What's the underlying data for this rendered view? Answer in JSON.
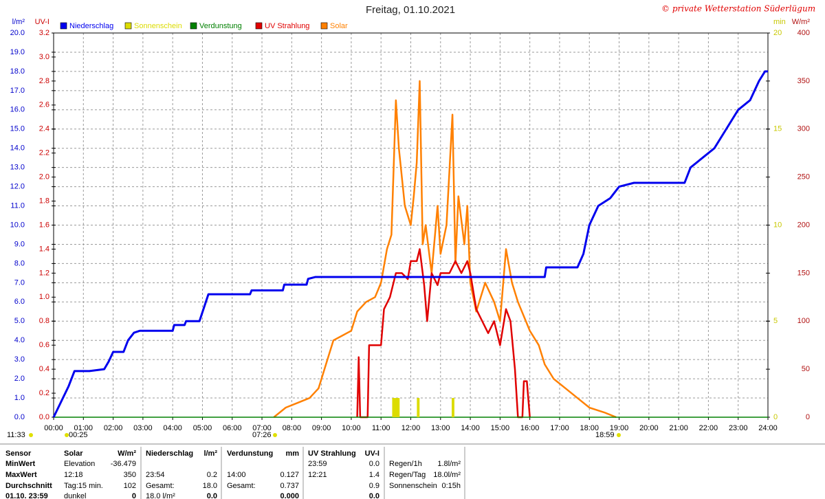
{
  "chart_data": {
    "type": "line",
    "title": "Freitag, 01.10.2021",
    "credit": "© private Wetterstation Süderlügum",
    "grid": true,
    "xlim": [
      0,
      24
    ],
    "xticks": [
      {
        "value": 0,
        "label": "00:00"
      },
      {
        "value": 1,
        "label": "01:00"
      },
      {
        "value": 2,
        "label": "02:00"
      },
      {
        "value": 3,
        "label": "03:00"
      },
      {
        "value": 4,
        "label": "04:00"
      },
      {
        "value": 5,
        "label": "05:00"
      },
      {
        "value": 6,
        "label": "06:00"
      },
      {
        "value": 7,
        "label": "07:00"
      },
      {
        "value": 8,
        "label": "08:00"
      },
      {
        "value": 9,
        "label": "09:00"
      },
      {
        "value": 10,
        "label": "10:00"
      },
      {
        "value": 11,
        "label": "11:00"
      },
      {
        "value": 12,
        "label": "12:00"
      },
      {
        "value": 13,
        "label": "13:00"
      },
      {
        "value": 14,
        "label": "14:00"
      },
      {
        "value": 15,
        "label": "15:00"
      },
      {
        "value": 16,
        "label": "16:00"
      },
      {
        "value": 17,
        "label": "17:00"
      },
      {
        "value": 18,
        "label": "18:00"
      },
      {
        "value": 19,
        "label": "19:00"
      },
      {
        "value": 20,
        "label": "20:00"
      },
      {
        "value": 21,
        "label": "21:00"
      },
      {
        "value": 22,
        "label": "22:00"
      },
      {
        "value": 23,
        "label": "23:00"
      },
      {
        "value": 24,
        "label": "24:00"
      }
    ],
    "y_axes": [
      {
        "label": "l/m²",
        "side": "left",
        "color": "#0000cc",
        "ylim": [
          0,
          20
        ],
        "yticks": [
          {
            "value": 0,
            "label": "0.0"
          },
          {
            "value": 1,
            "label": "1.0"
          },
          {
            "value": 2,
            "label": "2.0"
          },
          {
            "value": 3,
            "label": "3.0"
          },
          {
            "value": 4,
            "label": "4.0"
          },
          {
            "value": 5,
            "label": "5.0"
          },
          {
            "value": 6,
            "label": "6.0"
          },
          {
            "value": 7,
            "label": "7.0"
          },
          {
            "value": 8,
            "label": "8.0"
          },
          {
            "value": 9,
            "label": "9.0"
          },
          {
            "value": 10,
            "label": "10.0"
          },
          {
            "value": 11,
            "label": "11.0"
          },
          {
            "value": 12,
            "label": "12.0"
          },
          {
            "value": 13,
            "label": "13.0"
          },
          {
            "value": 14,
            "label": "14.0"
          },
          {
            "value": 15,
            "label": "15.0"
          },
          {
            "value": 16,
            "label": "16.0"
          },
          {
            "value": 17,
            "label": "17.0"
          },
          {
            "value": 18,
            "label": "18.0"
          },
          {
            "value": 19,
            "label": "19.0"
          },
          {
            "value": 20,
            "label": "20.0"
          }
        ]
      },
      {
        "label": "UV-I",
        "side": "left",
        "color": "#cc0000",
        "ylim": [
          0,
          3.2
        ],
        "yticks": [
          {
            "value": 0,
            "label": "0.0"
          },
          0.2,
          0.4,
          0.6,
          0.8,
          {
            "value": 1,
            "label": "1.0"
          },
          1.2,
          1.4,
          1.6,
          1.8,
          {
            "value": 2,
            "label": "2.0"
          },
          2.2,
          2.4,
          2.6,
          2.8,
          {
            "value": 3,
            "label": "3.0"
          },
          3.2
        ]
      },
      {
        "label": "min",
        "side": "right",
        "color": "#c8c800",
        "ylim": [
          0,
          20
        ],
        "yticks": [
          0,
          5,
          10,
          15,
          20
        ]
      },
      {
        "label": "W/m²",
        "side": "right",
        "color": "#b01010",
        "ylim": [
          0,
          400
        ],
        "yticks": [
          0,
          50,
          100,
          150,
          200,
          250,
          300,
          350,
          400
        ]
      }
    ],
    "series": [
      {
        "name": "Niederschlag",
        "type": "line",
        "axis": 0,
        "color": "#0000ee",
        "x": [
          0,
          0.25,
          0.5,
          0.7,
          1.2,
          1.7,
          1.85,
          2.0,
          2.35,
          2.5,
          2.7,
          2.9,
          4.0,
          4.05,
          4.4,
          4.45,
          4.9,
          5.2,
          6.6,
          6.65,
          7.7,
          7.75,
          8.5,
          8.55,
          8.8,
          16.5,
          16.55,
          17.6,
          17.8,
          18.0,
          18.3,
          18.7,
          19.0,
          19.5,
          21.2,
          21.4,
          22.2,
          22.6,
          23.0,
          23.4,
          23.7,
          23.9,
          24.0
        ],
        "values": [
          0,
          0.8,
          1.6,
          2.4,
          2.4,
          2.5,
          2.9,
          3.4,
          3.4,
          4.0,
          4.4,
          4.5,
          4.5,
          4.8,
          4.8,
          5.0,
          5.0,
          6.4,
          6.4,
          6.6,
          6.6,
          6.9,
          6.9,
          7.2,
          7.3,
          7.3,
          7.8,
          7.8,
          8.5,
          10.0,
          11.0,
          11.4,
          12.0,
          12.2,
          12.2,
          13.0,
          14.0,
          15.0,
          16.0,
          16.5,
          17.5,
          18.0,
          18.0
        ]
      },
      {
        "name": "Sonnenschein",
        "type": "bar",
        "axis": 2,
        "color": "#dcdc00",
        "x": [
          11.42,
          11.5,
          11.58,
          12.25,
          13.42
        ],
        "values": [
          1,
          1,
          1,
          1,
          1
        ]
      },
      {
        "name": "Verdunstung",
        "type": "line",
        "axis": 0,
        "color": "#008000",
        "x": [
          0,
          24
        ],
        "values": [
          0,
          0
        ]
      },
      {
        "name": "UV Strahlung",
        "type": "line",
        "axis": 1,
        "color": "#e00000",
        "x": [
          10.2,
          10.25,
          10.3,
          10.55,
          10.6,
          11.0,
          11.1,
          11.3,
          11.5,
          11.7,
          11.9,
          12.0,
          12.2,
          12.3,
          12.45,
          12.55,
          12.7,
          12.9,
          13.0,
          13.3,
          13.5,
          13.7,
          13.9,
          14.0,
          14.2,
          14.4,
          14.6,
          14.8,
          15.0,
          15.2,
          15.35,
          15.5,
          15.6,
          15.75,
          15.8,
          15.9,
          16.0
        ],
        "values": [
          0,
          0.5,
          0,
          0,
          0.6,
          0.6,
          0.9,
          1.0,
          1.2,
          1.2,
          1.15,
          1.3,
          1.3,
          1.4,
          1.1,
          0.8,
          1.2,
          1.1,
          1.2,
          1.2,
          1.3,
          1.2,
          1.3,
          1.2,
          0.9,
          0.8,
          0.7,
          0.8,
          0.6,
          0.9,
          0.8,
          0.4,
          0,
          0,
          0.3,
          0.3,
          0
        ]
      },
      {
        "name": "Solar",
        "type": "line",
        "axis": 3,
        "color": "#ff8000",
        "x": [
          7.4,
          7.8,
          8.2,
          8.6,
          8.9,
          9.2,
          9.4,
          9.7,
          10.0,
          10.2,
          10.5,
          10.8,
          11.0,
          11.2,
          11.35,
          11.5,
          11.6,
          11.8,
          12.0,
          12.1,
          12.2,
          12.3,
          12.4,
          12.5,
          12.7,
          12.9,
          13.0,
          13.2,
          13.4,
          13.5,
          13.6,
          13.8,
          13.9,
          14.0,
          14.2,
          14.5,
          14.8,
          15.0,
          15.2,
          15.4,
          15.6,
          15.8,
          16.0,
          16.3,
          16.5,
          16.8,
          17.2,
          17.6,
          18.0,
          18.5,
          18.9
        ],
        "values": [
          0,
          10,
          15,
          20,
          30,
          60,
          80,
          85,
          90,
          110,
          120,
          125,
          140,
          175,
          190,
          330,
          280,
          220,
          200,
          230,
          265,
          350,
          180,
          200,
          150,
          220,
          170,
          200,
          315,
          160,
          230,
          180,
          220,
          140,
          110,
          140,
          120,
          100,
          175,
          140,
          120,
          105,
          90,
          75,
          55,
          40,
          30,
          20,
          10,
          5,
          0
        ]
      }
    ],
    "annotations": [
      "11:33",
      "00:25",
      "07:26",
      "18:59"
    ],
    "table": {
      "header": [
        "Sensor",
        "Solar",
        "W/m²",
        "Niederschlag",
        "l/m²",
        "Verdunstung",
        "mm",
        "UV Strahlung",
        "UV-I",
        null,
        null
      ],
      "rows": [
        [
          "MinWert",
          "Elevation",
          "-36.479",
          null,
          null,
          null,
          null,
          "23:59",
          "0.0",
          "Regen/1h",
          "1.8l/m²"
        ],
        [
          "MaxWert",
          "12:18",
          "350",
          "23:54",
          "0.2",
          "14:00",
          "0.127",
          "12:21",
          "1.4",
          "Regen/Tag",
          "18.0l/m²"
        ],
        [
          "Durchschnitt",
          "Tag:15 min.",
          "102",
          "Gesamt:",
          "18.0",
          "Gesamt:",
          "0.737",
          null,
          "0.9",
          "Sonnenschein",
          "0:15h"
        ],
        [
          "01.10. 23:59",
          "dunkel",
          "0",
          "18.0 l/m²",
          "0.0",
          null,
          "0.000",
          null,
          "0.0",
          null,
          null
        ]
      ]
    }
  }
}
